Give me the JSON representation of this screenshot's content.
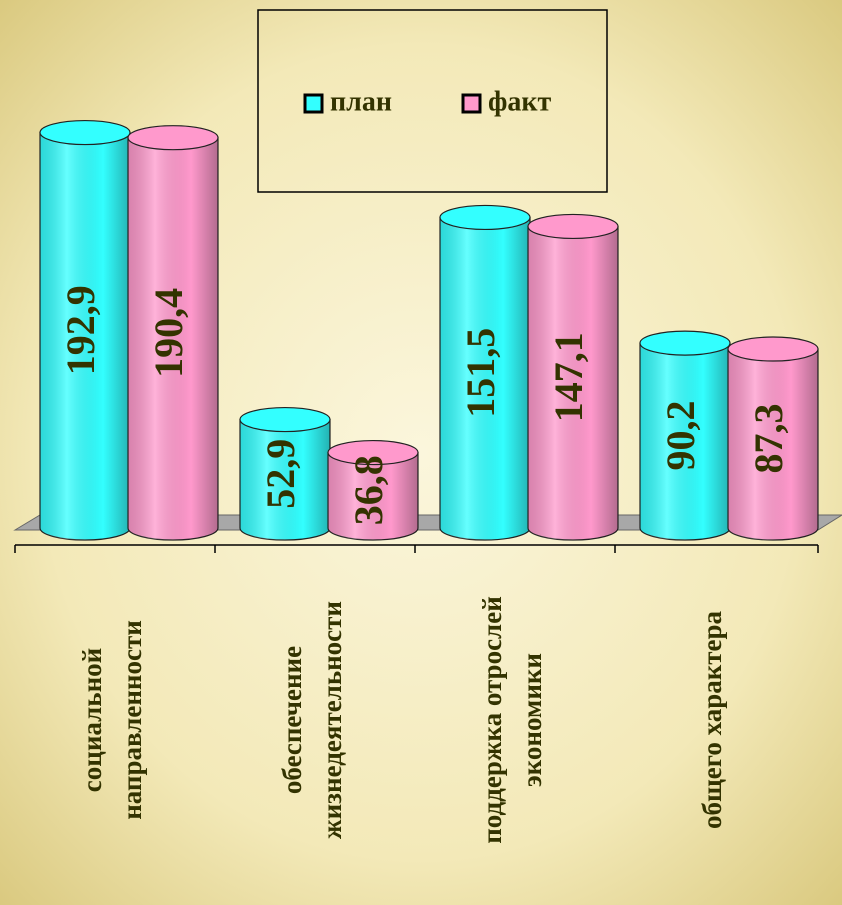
{
  "chart_data": {
    "type": "bar",
    "categories": [
      [
        "социальной",
        "направленности"
      ],
      [
        "обеспечение",
        "жизнедеятельности"
      ],
      [
        "поддержка отрослей",
        "экономики"
      ],
      [
        "общего характера"
      ]
    ],
    "series": [
      {
        "name": "план",
        "color": "#33ffff",
        "values": [
          192.9,
          52.9,
          151.5,
          90.2
        ],
        "value_labels": [
          "192,9",
          "52,9",
          "151,5",
          "90,2"
        ]
      },
      {
        "name": "факт",
        "color": "#ff99cc",
        "values": [
          190.4,
          36.8,
          147.1,
          87.3
        ],
        "value_labels": [
          "190,4",
          "36,8",
          "147,1",
          "87,3"
        ]
      }
    ],
    "ylim": [
      0,
      200
    ]
  }
}
